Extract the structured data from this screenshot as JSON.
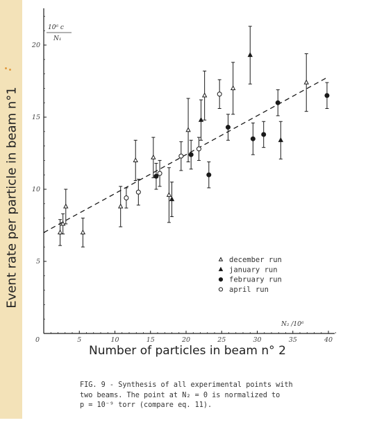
{
  "chart_data": {
    "type": "scatter",
    "ylabel": "Event rate per particle in beam n°1",
    "xlabel": "Number of particles in beam n° 2",
    "y_unit_top": "10⁶ c",
    "y_unit_bottom": "N₁",
    "x_unit": "N₂ /10⁶",
    "xlim": [
      0,
      41
    ],
    "ylim": [
      0,
      22
    ],
    "x_ticks": [
      "0",
      "5",
      "10",
      "15",
      "20",
      "25",
      "30",
      "35",
      "40"
    ],
    "y_ticks": [
      "0",
      "5",
      "10",
      "15",
      "20"
    ],
    "grid": false,
    "legend_position": "bottom-right",
    "series": [
      {
        "name": "december run",
        "marker": "triangle-open",
        "points": [
          {
            "x": 2.3,
            "y": 7.0,
            "err": 0.9
          },
          {
            "x": 2.7,
            "y": 7.6,
            "err": 0.7
          },
          {
            "x": 3.1,
            "y": 8.8,
            "err": 1.2
          },
          {
            "x": 5.5,
            "y": 7.0,
            "err": 1.0
          },
          {
            "x": 10.8,
            "y": 8.8,
            "err": 1.4
          },
          {
            "x": 12.9,
            "y": 12.0,
            "err": 1.4
          },
          {
            "x": 15.4,
            "y": 12.2,
            "err": 1.4
          },
          {
            "x": 17.6,
            "y": 9.6,
            "err": 1.9
          },
          {
            "x": 20.3,
            "y": 14.1,
            "err": 2.2
          },
          {
            "x": 22.6,
            "y": 16.5,
            "err": 1.7
          },
          {
            "x": 26.6,
            "y": 17.0,
            "err": 1.8
          },
          {
            "x": 36.9,
            "y": 17.4,
            "err": 2.0
          }
        ]
      },
      {
        "name": "january run",
        "marker": "triangle-filled",
        "points": [
          {
            "x": 18.0,
            "y": 9.3,
            "err": 1.2
          },
          {
            "x": 22.1,
            "y": 14.8,
            "err": 1.4
          },
          {
            "x": 29.0,
            "y": 19.3,
            "err": 2.0
          },
          {
            "x": 33.3,
            "y": 13.4,
            "err": 1.3
          }
        ]
      },
      {
        "name": "february run",
        "marker": "circle-filled",
        "points": [
          {
            "x": 15.8,
            "y": 10.9,
            "err": 0.9
          },
          {
            "x": 20.7,
            "y": 12.4,
            "err": 1.0
          },
          {
            "x": 23.2,
            "y": 11.0,
            "err": 0.9
          },
          {
            "x": 25.9,
            "y": 14.3,
            "err": 0.9
          },
          {
            "x": 29.4,
            "y": 13.5,
            "err": 1.1
          },
          {
            "x": 30.9,
            "y": 13.8,
            "err": 0.9
          },
          {
            "x": 32.9,
            "y": 16.0,
            "err": 0.9
          },
          {
            "x": 39.8,
            "y": 16.5,
            "err": 0.9
          }
        ]
      },
      {
        "name": "april run",
        "marker": "circle-open",
        "points": [
          {
            "x": 11.6,
            "y": 9.4,
            "err": 0.7
          },
          {
            "x": 13.3,
            "y": 9.8,
            "err": 0.9
          },
          {
            "x": 16.3,
            "y": 11.1,
            "err": 0.9
          },
          {
            "x": 19.3,
            "y": 12.3,
            "err": 1.0
          },
          {
            "x": 21.8,
            "y": 12.8,
            "err": 0.8
          },
          {
            "x": 24.7,
            "y": 16.6,
            "err": 1.0
          }
        ]
      }
    ],
    "fit_line": {
      "style": "dashed",
      "x0": 0,
      "y0": 7.0,
      "x1": 40,
      "y1": 17.8
    }
  },
  "caption": {
    "line1": "FIG. 9 - Synthesis of all experimental points with",
    "line2": "two beams.  The point at N₂ = 0 is normalized  to",
    "line3": "p = 10⁻⁹ torr (compare eq. 11)."
  },
  "colors": {
    "strip": "#f3e2b8",
    "dots": "#e19a3e",
    "ink": "#1a1a1a"
  }
}
